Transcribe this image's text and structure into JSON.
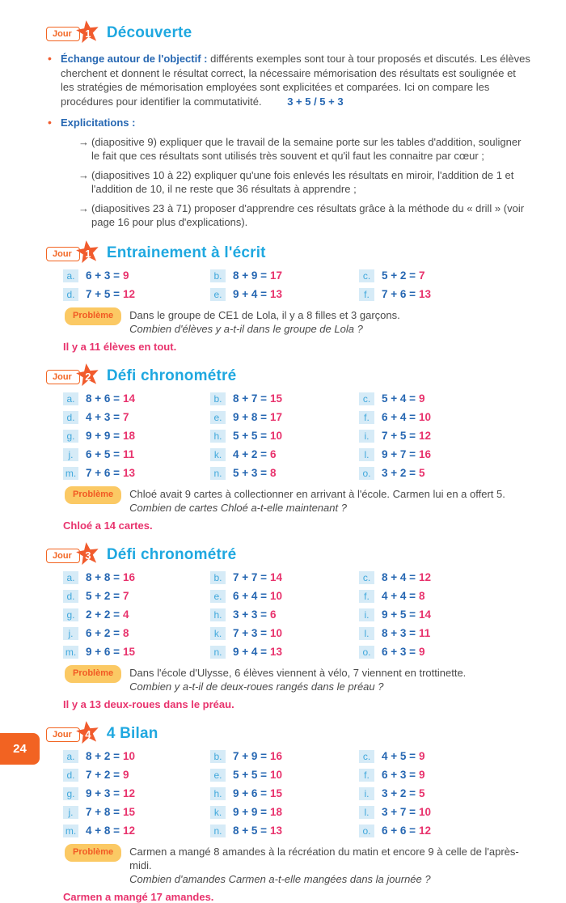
{
  "page_number": "24",
  "badge": {
    "label": "Jour"
  },
  "icons": {
    "bullet": "•",
    "arrow": "→"
  },
  "problem_badge_label": "Problème",
  "colors": {
    "accent_orange": "#f15b2d",
    "title_cyan": "#1fa8e0",
    "equation_blue": "#2667b2",
    "answer_crimson": "#e8336d",
    "letter_chip_bg": "#d6ebf7",
    "problem_badge_bg": "#fbc964"
  },
  "decouverte": {
    "day": "1",
    "title": "Découverte",
    "bullet1": {
      "lead": "Échange autour de l'objectif :",
      "text": "différents exemples sont tour à tour proposés et discutés. Les élèves cherchent et donnent le résultat correct, la nécessaire mémorisation des résultats est soulignée et les stratégies de mémorisation employées sont explicitées et comparées. Ici on compare les procédures pour identifier la commutativité.",
      "formula": "3 + 5 / 5 + 3"
    },
    "bullet2": {
      "lead": "Explicitations :",
      "arrows": [
        "(diapositive 9) expliquer que le travail de la semaine porte sur les tables d'addition, souligner le fait que ces résultats sont utilisés très souvent et qu'il faut les connaitre par cœur ;",
        "(diapositives 10 à 22) expliquer qu'une fois enlevés les résultats en miroir, l'addition de 1 et l'addition de 10, il ne reste que 36 résultats à apprendre ;",
        "(diapositives 23 à 71) proposer d'apprendre ces résultats grâce à la méthode du « drill » (voir page 16 pour plus d'explications)."
      ]
    }
  },
  "day_sections": [
    {
      "day": "1",
      "title": "Entrainement à l'écrit",
      "exercises": [
        {
          "letter": "a.",
          "expr": "6 + 3 =",
          "ans": "9"
        },
        {
          "letter": "b.",
          "expr": "8 + 9 =",
          "ans": "17"
        },
        {
          "letter": "c.",
          "expr": "5 + 2 =",
          "ans": "7"
        },
        {
          "letter": "d.",
          "expr": "7 + 5 =",
          "ans": "12"
        },
        {
          "letter": "e.",
          "expr": "9 + 4 =",
          "ans": "13"
        },
        {
          "letter": "f.",
          "expr": "7 + 6 =",
          "ans": "13"
        }
      ],
      "problem": {
        "statement": "Dans le groupe de CE1 de Lola, il y a 8 filles et 3 garçons.",
        "question": "Combien d'élèves y a-t-il dans le groupe de Lola ?",
        "answer": "Il y a 11 élèves en tout."
      }
    },
    {
      "day": "2",
      "title": "Défi chronométré",
      "exercises": [
        {
          "letter": "a.",
          "expr": "8 + 6 =",
          "ans": "14"
        },
        {
          "letter": "b.",
          "expr": "8 + 7 =",
          "ans": "15"
        },
        {
          "letter": "c.",
          "expr": "5 + 4 =",
          "ans": "9"
        },
        {
          "letter": "d.",
          "expr": "4 + 3 =",
          "ans": "7"
        },
        {
          "letter": "e.",
          "expr": "9 + 8 =",
          "ans": "17"
        },
        {
          "letter": "f.",
          "expr": "6 + 4 =",
          "ans": "10"
        },
        {
          "letter": "g.",
          "expr": "9 + 9 =",
          "ans": "18"
        },
        {
          "letter": "h.",
          "expr": "5 + 5 =",
          "ans": "10"
        },
        {
          "letter": "i.",
          "expr": "7 + 5 =",
          "ans": "12"
        },
        {
          "letter": "j.",
          "expr": "6 + 5 =",
          "ans": "11"
        },
        {
          "letter": "k.",
          "expr": "4 + 2 =",
          "ans": "6"
        },
        {
          "letter": "l.",
          "expr": "9 + 7 =",
          "ans": "16"
        },
        {
          "letter": "m.",
          "expr": "7 + 6 =",
          "ans": "13"
        },
        {
          "letter": "n.",
          "expr": "5 + 3 =",
          "ans": "8"
        },
        {
          "letter": "o.",
          "expr": "3 + 2 =",
          "ans": "5"
        }
      ],
      "problem": {
        "statement": "Chloé avait 9 cartes à collectionner en arrivant à l'école. Carmen lui en a offert 5.",
        "question": "Combien de cartes Chloé a-t-elle maintenant ?",
        "answer": "Chloé a 14 cartes."
      }
    },
    {
      "day": "3",
      "title": "Défi chronométré",
      "exercises": [
        {
          "letter": "a.",
          "expr": "8 + 8 =",
          "ans": "16"
        },
        {
          "letter": "b.",
          "expr": "7 + 7 =",
          "ans": "14"
        },
        {
          "letter": "c.",
          "expr": "8 + 4 =",
          "ans": "12"
        },
        {
          "letter": "d.",
          "expr": "5 + 2 =",
          "ans": "7"
        },
        {
          "letter": "e.",
          "expr": "6 + 4 =",
          "ans": "10"
        },
        {
          "letter": "f.",
          "expr": "4 + 4 =",
          "ans": "8"
        },
        {
          "letter": "g.",
          "expr": "2 + 2 =",
          "ans": "4"
        },
        {
          "letter": "h.",
          "expr": "3 + 3 =",
          "ans": "6"
        },
        {
          "letter": "i.",
          "expr": "9 + 5 =",
          "ans": "14"
        },
        {
          "letter": "j.",
          "expr": "6 + 2 =",
          "ans": "8"
        },
        {
          "letter": "k.",
          "expr": "7 + 3 =",
          "ans": "10"
        },
        {
          "letter": "l.",
          "expr": "8 + 3 =",
          "ans": "11"
        },
        {
          "letter": "m.",
          "expr": "9 + 6 =",
          "ans": "15"
        },
        {
          "letter": "n.",
          "expr": "9 + 4 =",
          "ans": "13"
        },
        {
          "letter": "o.",
          "expr": "6 + 3 =",
          "ans": "9"
        }
      ],
      "problem": {
        "statement": "Dans l'école d'Ulysse, 6 élèves viennent à vélo, 7 viennent en trottinette.",
        "question": "Combien y a-t-il de deux-roues rangés dans le préau ?",
        "answer": "Il y a 13 deux-roues dans le préau."
      }
    },
    {
      "day": "4",
      "title": "4 Bilan",
      "exercises": [
        {
          "letter": "a.",
          "expr": "8 + 2 =",
          "ans": "10"
        },
        {
          "letter": "b.",
          "expr": "7 + 9 =",
          "ans": "16"
        },
        {
          "letter": "c.",
          "expr": "4 + 5 =",
          "ans": "9"
        },
        {
          "letter": "d.",
          "expr": "7 + 2 =",
          "ans": "9"
        },
        {
          "letter": "e.",
          "expr": "5 + 5 =",
          "ans": "10"
        },
        {
          "letter": "f.",
          "expr": "6 + 3 =",
          "ans": "9"
        },
        {
          "letter": "g.",
          "expr": "9 + 3 =",
          "ans": "12"
        },
        {
          "letter": "h.",
          "expr": "9 + 6 =",
          "ans": "15"
        },
        {
          "letter": "i.",
          "expr": "3 + 2 =",
          "ans": "5"
        },
        {
          "letter": "j.",
          "expr": "7 + 8 =",
          "ans": "15"
        },
        {
          "letter": "k.",
          "expr": "9 + 9 =",
          "ans": "18"
        },
        {
          "letter": "l.",
          "expr": "3 + 7 =",
          "ans": "10"
        },
        {
          "letter": "m.",
          "expr": "4 + 8 =",
          "ans": "12"
        },
        {
          "letter": "n.",
          "expr": "8 + 5 =",
          "ans": "13"
        },
        {
          "letter": "o.",
          "expr": "6 + 6 =",
          "ans": "12"
        }
      ],
      "problem": {
        "statement": "Carmen a mangé 8 amandes à la récréation du matin et encore 9 à celle de l'après-midi.",
        "question": "Combien d'amandes Carmen a-t-elle mangées dans la journée ?",
        "answer": "Carmen a mangé 17 amandes."
      }
    }
  ]
}
